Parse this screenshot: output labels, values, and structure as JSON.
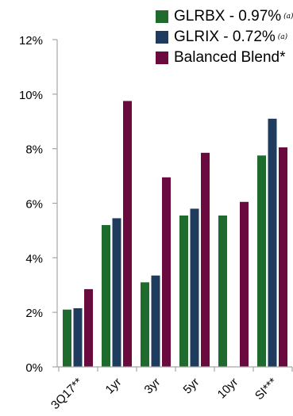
{
  "colors": {
    "axis": "#a6a6a6",
    "text": "#000000"
  },
  "chart_data": {
    "type": "bar",
    "categories": [
      "3Q17**",
      "1yr",
      "3yr",
      "5yr",
      "10yr",
      "SI***"
    ],
    "series": [
      {
        "name": "GLRBX - 0.97%",
        "note": "(a)",
        "color": "#1f6b2e",
        "values": [
          2.1,
          5.2,
          3.1,
          5.55,
          5.55,
          7.75
        ]
      },
      {
        "name": "GLRIX - 0.72%",
        "note": "(a)",
        "color": "#1f3b5e",
        "values": [
          2.15,
          5.45,
          3.35,
          5.8,
          null,
          9.1
        ]
      },
      {
        "name": "Balanced Blend*",
        "note": "",
        "color": "#6b0a3e",
        "values": [
          2.85,
          9.75,
          6.95,
          7.85,
          6.05,
          8.05
        ]
      }
    ],
    "yticks": [
      "0%",
      "2%",
      "4%",
      "6%",
      "8%",
      "10%",
      "12%"
    ],
    "ylim": [
      0,
      12
    ],
    "title": "",
    "xlabel": "",
    "ylabel": "",
    "legend": "top-right",
    "grid": false
  }
}
